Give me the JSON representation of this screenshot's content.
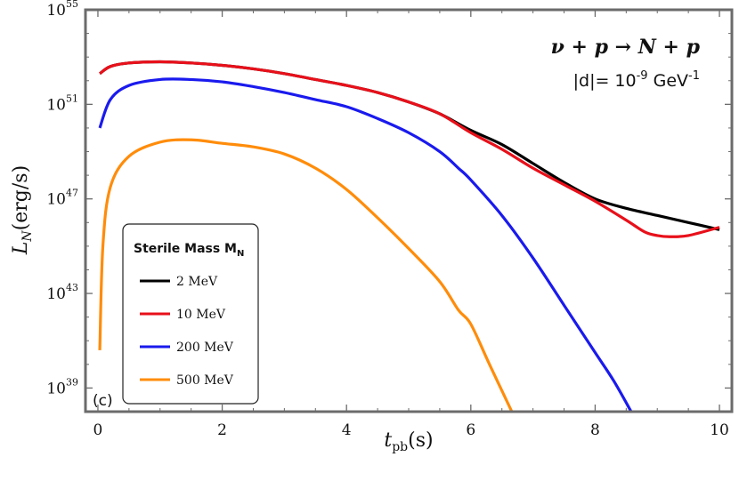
{
  "chart_data": {
    "type": "line",
    "panel_label": "(c)",
    "annotation": {
      "process": "ν + p → N + p",
      "d_label": "|d|= 10",
      "d_exp": "-9",
      "d_unit": " GeV",
      "d_unit_exp": "-1"
    },
    "xlabel": {
      "main": "t",
      "sub": "pb",
      "unit": "(s)"
    },
    "ylabel": {
      "main": "L",
      "sub": "N",
      "unit": "(erg/s)"
    },
    "xlim": [
      -0.2,
      10.2
    ],
    "ylog_lim": [
      38,
      55
    ],
    "yscale": "log",
    "x_ticks": [
      "0",
      "2",
      "4",
      "6",
      "8",
      "10"
    ],
    "y_ticks": [
      {
        "base": "10",
        "exp": "39",
        "v": 39
      },
      {
        "base": "10",
        "exp": "43",
        "v": 43
      },
      {
        "base": "10",
        "exp": "47",
        "v": 47
      },
      {
        "base": "10",
        "exp": "51",
        "v": 51
      },
      {
        "base": "10",
        "exp": "55",
        "v": 55
      }
    ],
    "legend": {
      "title": "Sterile Mass M",
      "title_sub": "N",
      "placement": "bottom-left"
    },
    "series": [
      {
        "name": "2 MeV",
        "color": "#000000",
        "x": [
          0.03,
          0.2,
          0.5,
          1.0,
          1.5,
          2.0,
          2.5,
          3.0,
          3.5,
          4.0,
          4.5,
          5.0,
          5.5,
          6.0,
          6.5,
          7.0,
          7.5,
          8.0,
          8.5,
          9.0,
          9.5,
          10.0
        ],
        "y": [
          52.3,
          52.6,
          52.75,
          52.8,
          52.75,
          52.65,
          52.5,
          52.3,
          52.05,
          51.8,
          51.5,
          51.1,
          50.6,
          49.9,
          49.3,
          48.5,
          47.7,
          47.0,
          46.6,
          46.3,
          46.0,
          45.7
        ]
      },
      {
        "name": "10 MeV",
        "color": "#e8101a",
        "x": [
          0.03,
          0.2,
          0.5,
          1.0,
          1.5,
          2.0,
          2.5,
          3.0,
          3.5,
          4.0,
          4.5,
          5.0,
          5.5,
          6.0,
          6.5,
          7.0,
          7.5,
          8.0,
          8.5,
          8.8,
          9.0,
          9.2,
          9.5,
          10.0
        ],
        "y": [
          52.3,
          52.6,
          52.75,
          52.8,
          52.75,
          52.65,
          52.5,
          52.3,
          52.05,
          51.8,
          51.5,
          51.1,
          50.6,
          49.8,
          49.1,
          48.3,
          47.6,
          46.9,
          46.1,
          45.6,
          45.45,
          45.4,
          45.45,
          45.8
        ]
      },
      {
        "name": "200 MeV",
        "color": "#1a1aee",
        "x": [
          0.03,
          0.2,
          0.5,
          1.0,
          1.5,
          2.0,
          2.5,
          3.0,
          3.5,
          4.0,
          4.5,
          5.0,
          5.5,
          5.8,
          6.0,
          6.5,
          7.0,
          7.5,
          8.0,
          8.3,
          8.58
        ],
        "y": [
          50.0,
          51.2,
          51.8,
          52.05,
          52.05,
          51.95,
          51.75,
          51.5,
          51.2,
          50.9,
          50.4,
          49.8,
          49.0,
          48.3,
          47.8,
          46.3,
          44.5,
          42.5,
          40.5,
          39.3,
          38.0
        ]
      },
      {
        "name": "500 MeV",
        "color": "#ff8c0a",
        "x": [
          0.03,
          0.08,
          0.2,
          0.5,
          1.0,
          1.5,
          2.0,
          2.5,
          3.0,
          3.5,
          4.0,
          4.5,
          5.0,
          5.5,
          5.8,
          6.0,
          6.3,
          6.66
        ],
        "y": [
          40.6,
          45.0,
          47.5,
          48.8,
          49.4,
          49.5,
          49.35,
          49.2,
          48.9,
          48.3,
          47.4,
          46.2,
          44.9,
          43.5,
          42.3,
          41.7,
          40.0,
          38.0
        ]
      }
    ]
  }
}
